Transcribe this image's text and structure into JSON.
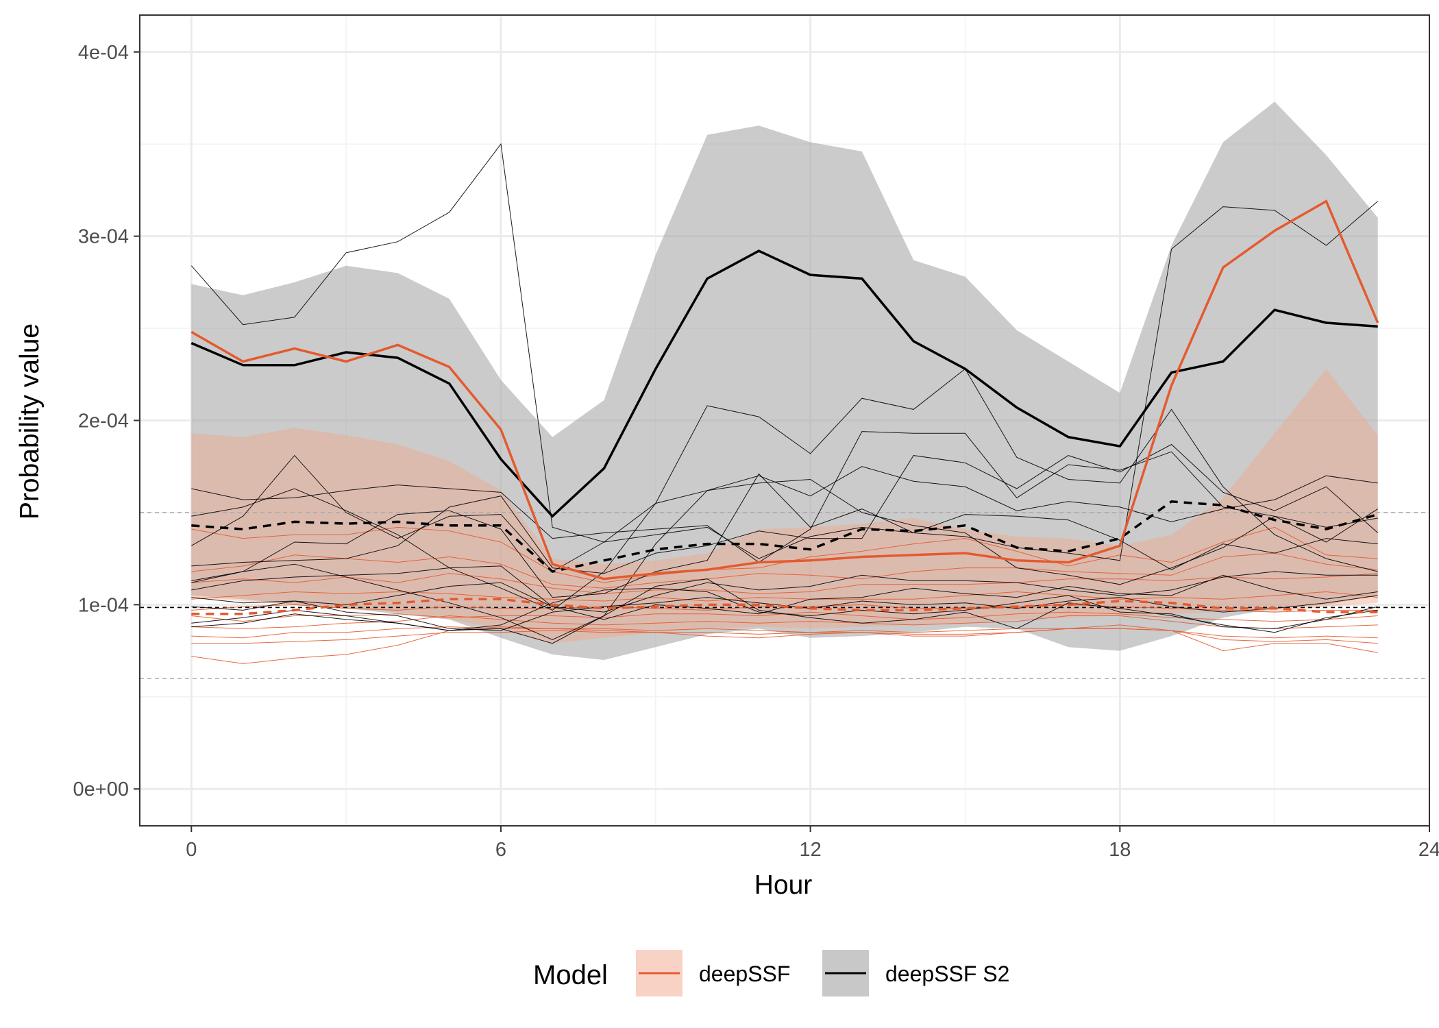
{
  "chart_data": {
    "type": "line",
    "xlabel": "Hour",
    "ylabel": "Probability value",
    "xlim": [
      -1,
      24
    ],
    "ylim": [
      -2e-05,
      0.00042
    ],
    "x_ticks": [
      0,
      6,
      12,
      18,
      24
    ],
    "x_tick_labels": [
      "0",
      "6",
      "12",
      "18",
      "24"
    ],
    "y_ticks": [
      0,
      0.0001,
      0.0002,
      0.0003,
      0.0004
    ],
    "y_tick_labels": [
      "0e+00",
      "1e-04",
      "2e-04",
      "3e-04",
      "4e-04"
    ],
    "grid": true,
    "legend": {
      "title": "Model",
      "placement": "bottom",
      "entries": [
        {
          "label": "deepSSF",
          "color": "#e45a2f",
          "fill": "#f6c8b9"
        },
        {
          "label": "deepSSF S2",
          "color": "#000000",
          "fill": "#c8c8c8"
        }
      ]
    },
    "reference_lines": [
      {
        "y": 9.85e-05,
        "style": "dashed",
        "color": "#000000"
      },
      {
        "y": 0.00015,
        "style": "dashed",
        "color": "#aaaaaa"
      },
      {
        "y": 6e-05,
        "style": "dashed",
        "color": "#aaaaaa"
      }
    ],
    "x": [
      0,
      1,
      2,
      3,
      4,
      5,
      6,
      7,
      8,
      9,
      10,
      11,
      12,
      13,
      14,
      15,
      16,
      17,
      18,
      19,
      20,
      21,
      22,
      23
    ],
    "series": [
      {
        "name": "deepSSF S2",
        "color": "#000000",
        "band_fill": "#a8a8a8",
        "band_lower": [
          0.000105,
          0.000103,
          0.0001,
          9.8e-05,
          9.5e-05,
          9.2e-05,
          8.2e-05,
          7.3e-05,
          7e-05,
          7.7e-05,
          8.4e-05,
          8.7e-05,
          8.2e-05,
          8.3e-05,
          8.5e-05,
          8.8e-05,
          8.7e-05,
          7.7e-05,
          7.5e-05,
          8.3e-05,
          9.3e-05,
          9.8e-05,
          0.0001,
          0.000105
        ],
        "band_upper": [
          0.000274,
          0.000268,
          0.000275,
          0.000284,
          0.00028,
          0.000266,
          0.000222,
          0.000191,
          0.000211,
          0.00029,
          0.000355,
          0.00036,
          0.000351,
          0.000346,
          0.000287,
          0.000278,
          0.000249,
          0.000232,
          0.000215,
          0.000295,
          0.000351,
          0.000373,
          0.000344,
          0.00031
        ],
        "mean": [
          0.000242,
          0.00023,
          0.00023,
          0.000237,
          0.000234,
          0.00022,
          0.000179,
          0.000148,
          0.000174,
          0.000228,
          0.000277,
          0.000292,
          0.000279,
          0.000277,
          0.000243,
          0.000228,
          0.000207,
          0.000191,
          0.000186,
          0.000226,
          0.000232,
          0.00026,
          0.000253,
          0.000251
        ],
        "median": [
          0.000143,
          0.000141,
          0.000145,
          0.000144,
          0.000145,
          0.000143,
          0.000143,
          0.000118,
          0.000124,
          0.00013,
          0.000133,
          0.000133,
          0.00013,
          0.000141,
          0.00014,
          0.000143,
          0.000131,
          0.000129,
          0.000136,
          0.000156,
          0.000154,
          0.000146,
          0.000141,
          0.000149
        ],
        "individuals": [
          [
            0.000284,
            0.000252,
            0.000256,
            0.000291,
            0.000297,
            0.000313,
            0.00035,
            0.000142,
            0.000134,
            0.000138,
            0.000142,
            0.000125,
            0.000137,
            0.000142,
            0.000139,
            0.000137,
            0.000131,
            0.000128,
            0.000124,
            0.000293,
            0.000316,
            0.000314,
            0.000295,
            0.000319
          ],
          [
            0.000148,
            0.000153,
            0.000163,
            0.000151,
            0.000138,
            0.00012,
            0.000109,
            9.7e-05,
            0.000118,
            0.000155,
            0.000208,
            0.000202,
            0.000182,
            0.000212,
            0.000206,
            0.000228,
            0.00018,
            0.000168,
            0.000166,
            0.000206,
            0.000164,
            0.000138,
            0.000125,
            0.000118
          ],
          [
            0.000163,
            0.000157,
            0.000158,
            0.000162,
            0.000165,
            0.000163,
            0.000161,
            0.000136,
            0.000139,
            0.000141,
            0.000143,
            0.000123,
            0.000141,
            0.000194,
            0.000193,
            0.000193,
            0.000158,
            0.000176,
            0.000173,
            0.000183,
            0.000153,
            0.000148,
            0.000134,
            0.000152
          ],
          [
            0.000132,
            0.000148,
            0.000181,
            0.00015,
            0.000136,
            0.000148,
            0.000149,
            0.000118,
            0.000134,
            0.000155,
            0.000162,
            0.00017,
            0.000159,
            0.000175,
            0.000167,
            0.000164,
            0.000151,
            0.000156,
            0.000153,
            0.000145,
            0.000152,
            0.000157,
            0.00017,
            0.000166
          ],
          [
            0.000121,
            0.000123,
            0.000124,
            0.000125,
            0.000132,
            0.000153,
            0.000159,
            0.00012,
            0.000117,
            0.000128,
            0.000132,
            0.00014,
            0.000136,
            0.000136,
            0.000181,
            0.000177,
            0.000163,
            0.000181,
            0.000172,
            0.000187,
            0.000161,
            0.000151,
            0.000164,
            0.000139
          ],
          [
            0.000112,
            0.000118,
            0.000122,
            0.000115,
            0.000108,
            0.000101,
            9.3e-05,
            8.1e-05,
            9.4e-05,
            0.000133,
            0.000162,
            0.000166,
            0.000168,
            0.00015,
            0.000143,
            0.000139,
            0.00012,
            0.000116,
            0.000111,
            0.00012,
            0.000131,
            0.000148,
            0.000142,
            0.000147
          ],
          [
            0.000113,
            0.000118,
            0.000134,
            0.000133,
            0.000149,
            0.000151,
            0.000141,
            0.000104,
            0.000106,
            0.000118,
            0.000124,
            0.000171,
            0.000142,
            0.000152,
            0.000139,
            0.000149,
            0.000148,
            0.000146,
            0.000135,
            0.000119,
            0.000133,
            0.000128,
            0.000136,
            0.000133
          ],
          [
            0.000108,
            0.000113,
            0.000115,
            0.000116,
            0.000117,
            0.00012,
            0.000121,
            9.9e-05,
            9.6e-05,
            0.000105,
            0.000112,
            0.000108,
            0.00011,
            0.000116,
            0.000113,
            0.000113,
            0.000112,
            0.000108,
            0.000105,
            0.000108,
            0.000115,
            0.000118,
            0.000116,
            0.000116
          ],
          [
            0.000104,
            0.000101,
            0.000102,
            0.0001,
            0.000105,
            0.00011,
            0.000112,
            9.9e-05,
            9.2e-05,
            0.0001,
            9.8e-05,
            9.5e-05,
            0.000103,
            0.000104,
            0.000109,
            0.000106,
            0.000104,
            0.00011,
            0.000106,
            0.000105,
            0.000116,
            0.000108,
            0.000103,
            0.000107
          ],
          [
            9.9e-05,
            9.7e-05,
            0.000102,
            9.6e-05,
            9.4e-05,
            8.7e-05,
            8.6e-05,
            9.6e-05,
            9.9e-05,
            0.000101,
            0.000104,
            0.000101,
            9.8e-05,
            0.000102,
            0.0001,
            0.000101,
            9.8e-05,
            0.000102,
            0.000104,
            9.9e-05,
            9.6e-05,
            9.8e-05,
            0.000101,
            0.000105
          ],
          [
            9e-05,
            9.3e-05,
            9.7e-05,
            9.4e-05,
            9e-05,
            8.6e-05,
            8.9e-05,
            0.000101,
            0.000108,
            0.000109,
            0.000107,
            9.6e-05,
            9.4e-05,
            9.7e-05,
            9.5e-05,
            9.7e-05,
            0.000101,
            0.000105,
            9.6e-05,
            9.5e-05,
            8.8e-05,
            8.7e-05,
            9.2e-05,
            9.9e-05
          ],
          [
            8.8e-05,
            9e-05,
            9.5e-05,
            9.2e-05,
            9e-05,
            8.6e-05,
            8.7e-05,
            7.9e-05,
            9.4e-05,
            0.00011,
            0.000114,
            9.7e-05,
            9.3e-05,
            9e-05,
            9.2e-05,
            9.6e-05,
            8.7e-05,
            0.000101,
            9.8e-05,
            9.4e-05,
            8.9e-05,
            8.5e-05,
            9.3e-05,
            9.7e-05
          ]
        ]
      },
      {
        "name": "deepSSF",
        "color": "#e45a2f",
        "band_fill": "#f1a88e",
        "band_lower": [
          0.000104,
          0.000102,
          0.0001,
          9.8e-05,
          9.6e-05,
          9.2e-05,
          8.7e-05,
          7.9e-05,
          8.2e-05,
          8.5e-05,
          8.7e-05,
          8.8e-05,
          8.7e-05,
          8.8e-05,
          8.9e-05,
          9e-05,
          9.2e-05,
          9.3e-05,
          9.4e-05,
          9.5e-05,
          9.6e-05,
          9.6e-05,
          9.9e-05,
          0.000101
        ],
        "band_upper": [
          0.000193,
          0.000191,
          0.000196,
          0.000192,
          0.000187,
          0.000178,
          0.000162,
          0.000125,
          0.000122,
          0.000124,
          0.000128,
          0.000141,
          0.000142,
          0.000144,
          0.000147,
          0.000141,
          0.000137,
          0.000136,
          0.000132,
          0.000138,
          0.000158,
          0.000193,
          0.000228,
          0.000192
        ],
        "mean": [
          0.000248,
          0.000232,
          0.000239,
          0.000232,
          0.000241,
          0.000229,
          0.000195,
          0.000122,
          0.000114,
          0.000117,
          0.000119,
          0.000123,
          0.000124,
          0.000126,
          0.000127,
          0.000128,
          0.000124,
          0.000123,
          0.000132,
          0.000219,
          0.000283,
          0.000303,
          0.000319,
          0.000253
        ],
        "median": [
          9.5e-05,
          9.5e-05,
          9.7e-05,
          0.0001,
          0.000101,
          0.000103,
          0.000103,
          0.0001,
          9.8e-05,
          9.9e-05,
          0.0001,
          0.0001,
          9.8e-05,
          9.7e-05,
          9.7e-05,
          9.8e-05,
          9.9e-05,
          0.0001,
          0.000102,
          0.000101,
          9.8e-05,
          9.8e-05,
          9.6e-05,
          9.6e-05
        ],
        "individuals": [
          [
            0.000141,
            0.000136,
            0.000138,
            0.000138,
            0.000142,
            0.00014,
            0.000134,
            0.000118,
            0.000112,
            0.000116,
            0.000119,
            0.00012,
            0.000126,
            0.000129,
            0.000133,
            0.000136,
            0.000129,
            0.000121,
            0.000127,
            0.000123,
            0.000134,
            0.000142,
            0.000127,
            0.000125
          ],
          [
            0.000118,
            0.000121,
            0.000127,
            0.000125,
            0.000123,
            0.000126,
            0.000122,
            0.000111,
            0.000109,
            0.000112,
            0.000114,
            0.000117,
            0.000116,
            0.000114,
            0.000118,
            0.00012,
            0.00012,
            0.000118,
            0.000117,
            0.000116,
            0.000126,
            0.000128,
            0.000122,
            0.000119
          ],
          [
            0.000112,
            0.000114,
            0.000112,
            0.000115,
            0.000112,
            0.000117,
            0.000114,
            0.000109,
            0.000106,
            0.000108,
            0.000108,
            0.000106,
            0.000107,
            0.000111,
            0.000111,
            0.000111,
            0.000112,
            0.000114,
            0.000114,
            0.000113,
            0.000115,
            0.000114,
            0.000115,
            0.000117
          ],
          [
            0.000103,
            0.000105,
            0.000107,
            0.000106,
            0.000107,
            0.000106,
            0.000104,
            0.000103,
            0.000102,
            0.000104,
            0.000102,
            0.000104,
            0.000103,
            0.000103,
            0.000103,
            0.000105,
            0.000107,
            0.000105,
            0.000103,
            0.000104,
            0.000103,
            0.000105,
            0.000107,
            0.000104
          ],
          [
            9.7e-05,
            9.9e-05,
            0.0001,
            9.8e-05,
            9.7e-05,
            9.9e-05,
            9.8e-05,
            9.8e-05,
            9.9e-05,
            9.8e-05,
            9.7e-05,
            9.9e-05,
            9.9e-05,
            0.0001,
            9.8e-05,
            9.8e-05,
            9.9e-05,
            0.0001,
            9.9e-05,
            9.8e-05,
            9.7e-05,
            9.6e-05,
            9.7e-05,
            9.7e-05
          ],
          [
            9.4e-05,
            9.1e-05,
            9.4e-05,
            9.4e-05,
            9.5e-05,
            9.3e-05,
            9.4e-05,
            9.4e-05,
            9.3e-05,
            9.5e-05,
            9.5e-05,
            9.4e-05,
            9.6e-05,
            9.4e-05,
            9.2e-05,
            9.3e-05,
            9.5e-05,
            9.6e-05,
            9.5e-05,
            9.3e-05,
            9.2e-05,
            9.1e-05,
            9.2e-05,
            9.4e-05
          ],
          [
            8.8e-05,
            8.7e-05,
            8.8e-05,
            9e-05,
            9.1e-05,
            9.4e-05,
            9.2e-05,
            9e-05,
            8.9e-05,
            9e-05,
            9.1e-05,
            9e-05,
            9.1e-05,
            9e-05,
            8.9e-05,
            9e-05,
            9.1e-05,
            9.4e-05,
            9.4e-05,
            9.1e-05,
            8.8e-05,
            8.7e-05,
            8.8e-05,
            8.9e-05
          ],
          [
            8.3e-05,
            8.2e-05,
            8.5e-05,
            8.5e-05,
            8.7e-05,
            8.8e-05,
            8.7e-05,
            8.7e-05,
            8.7e-05,
            8.6e-05,
            8.7e-05,
            8.6e-05,
            8.5e-05,
            8.6e-05,
            8.5e-05,
            8.6e-05,
            8.7e-05,
            8.7e-05,
            8.7e-05,
            8.6e-05,
            8.3e-05,
            8.2e-05,
            8.3e-05,
            8.2e-05
          ],
          [
            7.9e-05,
            7.9e-05,
            8e-05,
            8.1e-05,
            8.3e-05,
            8.5e-05,
            8.5e-05,
            8.6e-05,
            8.5e-05,
            8.5e-05,
            8.5e-05,
            8.4e-05,
            8.5e-05,
            8.5e-05,
            8.4e-05,
            8.4e-05,
            8.5e-05,
            8.7e-05,
            8.7e-05,
            8.6e-05,
            8.1e-05,
            8e-05,
            8.1e-05,
            7.9e-05
          ],
          [
            7.2e-05,
            6.8e-05,
            7.1e-05,
            7.3e-05,
            7.8e-05,
            8.6e-05,
            8.8e-05,
            8.7e-05,
            8.6e-05,
            8.5e-05,
            8.3e-05,
            8.2e-05,
            8.4e-05,
            8.5e-05,
            8.3e-05,
            8.3e-05,
            8.5e-05,
            8.7e-05,
            8.9e-05,
            8.6e-05,
            7.5e-05,
            7.9e-05,
            7.9e-05,
            7.4e-05
          ]
        ]
      }
    ]
  }
}
